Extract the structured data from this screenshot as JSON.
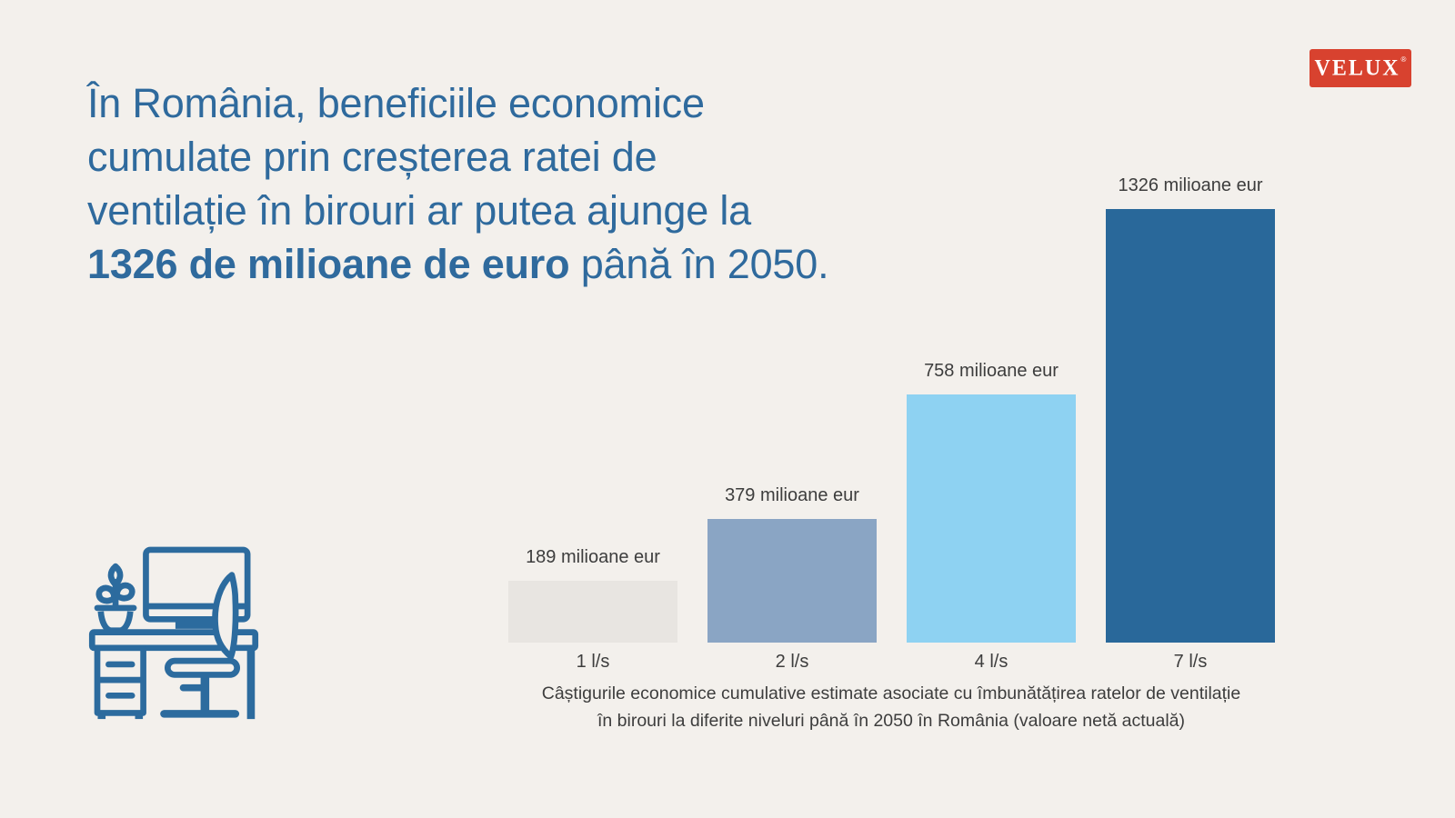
{
  "colors": {
    "background": "#f3f0ec",
    "headline_blue": "#2f6a9d",
    "velux_red": "#d8422f",
    "text_dark": "#3d3d3d",
    "illustration_blue": "#2c6b9e"
  },
  "logo": {
    "text": "VELUX",
    "registered": "®"
  },
  "headline": {
    "lines": [
      "În România, beneficiile economice",
      "cumulate prin creșterea ratei de",
      "ventilație în birouri ar putea ajunge la"
    ],
    "line4_bold": "1326 de milioane de euro",
    "line4_rest": " până în 2050."
  },
  "icons": {
    "desk": "office-desk-with-monitor-plant-and-chair"
  },
  "chart_data": {
    "type": "bar",
    "title": "",
    "categories": [
      "1 l/s",
      "2 l/s",
      "4 l/s",
      "7 l/s"
    ],
    "values": [
      189,
      379,
      758,
      1326
    ],
    "unit": "milioane eur",
    "value_labels": [
      "189 milioane eur",
      "379 milioane eur",
      "758 milioane eur",
      "1326 milioane eur"
    ],
    "bar_colors": [
      "#e8e5e1",
      "#8aa5c4",
      "#8ed2f2",
      "#29689a"
    ],
    "ylim": [
      0,
      1326
    ],
    "grid": false,
    "legend": false,
    "xlabel": "",
    "ylabel": "",
    "caption_line1": "Câștigurile economice cumulative estimate asociate cu îmbunătățirea ratelor de ventilație",
    "caption_line2": "în birouri la diferite niveluri până în 2050 în România (valoare netă actuală)"
  }
}
